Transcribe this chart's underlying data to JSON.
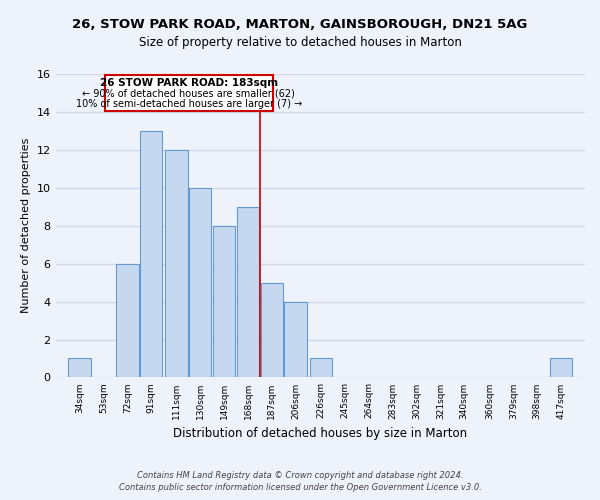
{
  "title1": "26, STOW PARK ROAD, MARTON, GAINSBOROUGH, DN21 5AG",
  "title2": "Size of property relative to detached houses in Marton",
  "xlabel": "Distribution of detached houses by size in Marton",
  "ylabel": "Number of detached properties",
  "bin_labels": [
    "34sqm",
    "53sqm",
    "72sqm",
    "91sqm",
    "111sqm",
    "130sqm",
    "149sqm",
    "168sqm",
    "187sqm",
    "206sqm",
    "226sqm",
    "245sqm",
    "264sqm",
    "283sqm",
    "302sqm",
    "321sqm",
    "340sqm",
    "360sqm",
    "379sqm",
    "398sqm",
    "417sqm"
  ],
  "bin_edges": [
    34,
    53,
    72,
    91,
    111,
    130,
    149,
    168,
    187,
    206,
    226,
    245,
    264,
    283,
    302,
    321,
    340,
    360,
    379,
    398,
    417
  ],
  "bin_width": 19,
  "counts": [
    1,
    0,
    6,
    13,
    12,
    10,
    8,
    9,
    5,
    4,
    1,
    0,
    0,
    0,
    0,
    0,
    0,
    0,
    0,
    0,
    1
  ],
  "bar_color": "#c5d8f0",
  "bar_edge_color": "#6699cc",
  "property_line_x": 187,
  "annotation_title": "26 STOW PARK ROAD: 183sqm",
  "annotation_line1": "← 90% of detached houses are smaller (62)",
  "annotation_line2": "10% of semi-detached houses are larger (7) →",
  "annotation_box_color": "#ffffff",
  "annotation_box_edge": "#cc0000",
  "vline_color": "#cc0000",
  "footer1": "Contains HM Land Registry data © Crown copyright and database right 2024.",
  "footer2": "Contains public sector information licensed under the Open Government Licence v3.0.",
  "ylim": [
    0,
    16
  ],
  "yticks": [
    0,
    2,
    4,
    6,
    8,
    10,
    12,
    14,
    16
  ],
  "background_color": "#eef2fa",
  "grid_color": "#d0d8e8"
}
